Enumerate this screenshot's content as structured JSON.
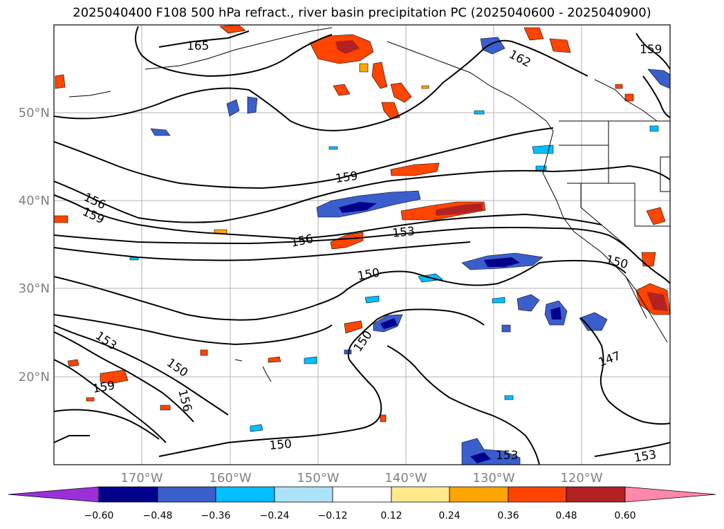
{
  "title": "2025040400 F108 500 hPa refract., river basin precipitation PC (2025040600 - 2025040900)",
  "map": {
    "lon_range": [
      -180,
      -110
    ],
    "lat_range": [
      10,
      60
    ],
    "lat_labels": [
      "50°N",
      "40°N",
      "30°N",
      "20°N"
    ],
    "lon_labels": [
      "170°W",
      "160°W",
      "150°W",
      "140°W",
      "130°W",
      "120°W"
    ],
    "contour_labels": [
      "165",
      "162",
      "159",
      "159",
      "156",
      "159",
      "156",
      "153",
      "150",
      "150",
      "153",
      "150",
      "156",
      "159",
      "150",
      "147",
      "153",
      "153"
    ],
    "grid": true
  },
  "colorbar": {
    "ticks": [
      "−0.60",
      "−0.48",
      "−0.36",
      "−0.24",
      "−0.12",
      "0.12",
      "0.24",
      "0.36",
      "0.48",
      "0.60"
    ],
    "colors": [
      "#9b30d9",
      "#00008b",
      "#3a5fcd",
      "#00bfff",
      "#aee2fb",
      "#ffffff",
      "#ffe98c",
      "#ffa500",
      "#ff4500",
      "#b22222",
      "#ff88aa"
    ],
    "extend": "both"
  }
}
